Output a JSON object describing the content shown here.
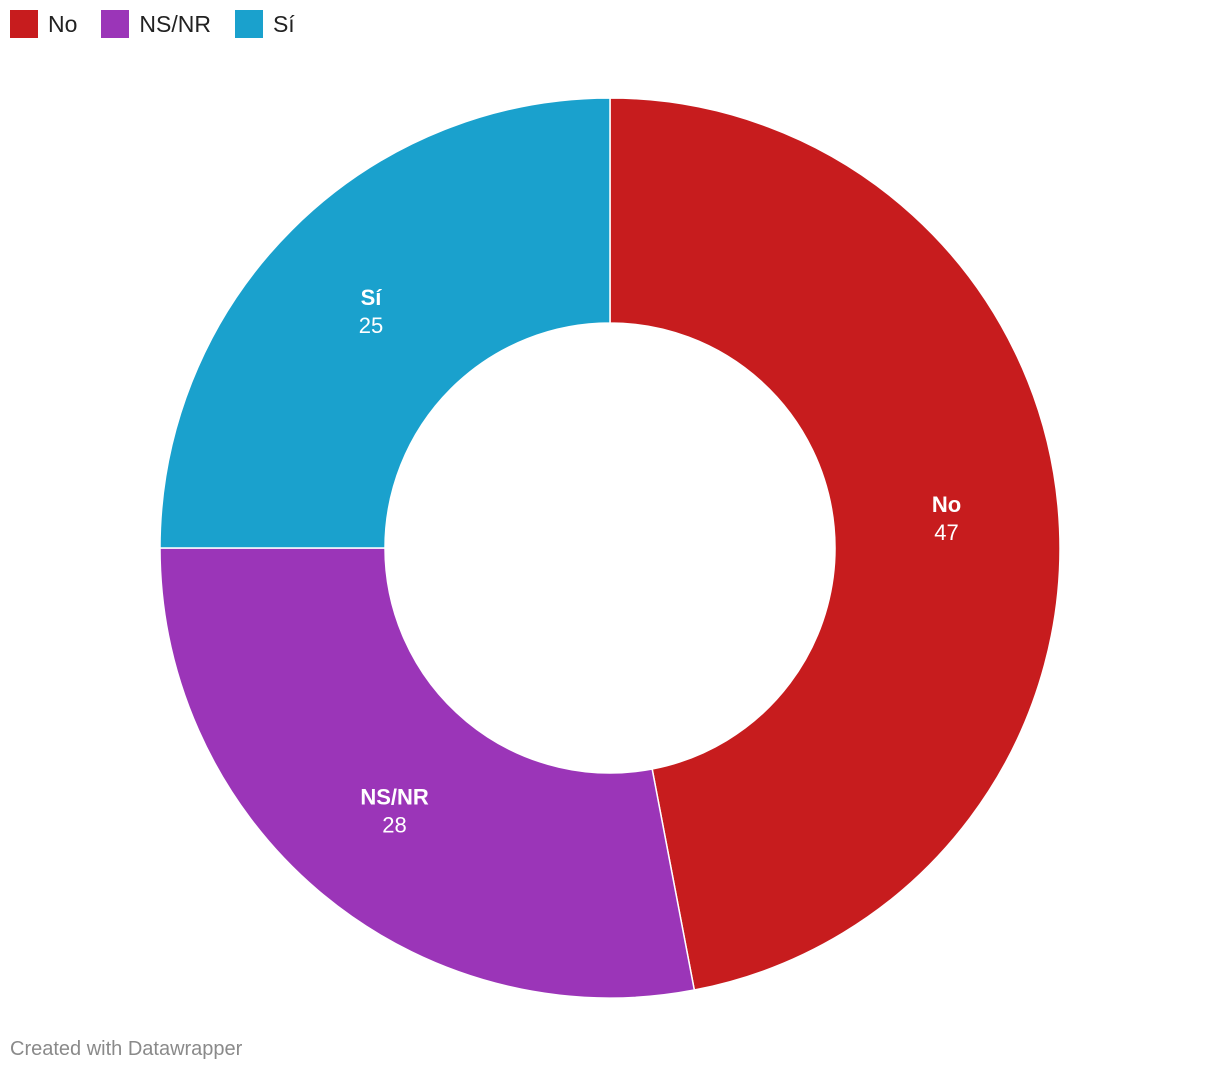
{
  "chart_data": {
    "type": "pie",
    "donut": true,
    "categories": [
      "No",
      "NS/NR",
      "Sí"
    ],
    "values": [
      47,
      28,
      25
    ],
    "colors": [
      "#c71c1e",
      "#9b35b8",
      "#1aa1cd"
    ],
    "legend_position": "top-left",
    "title": "",
    "xlabel": "",
    "ylabel": ""
  },
  "footer": {
    "credit": "Created with Datawrapper"
  }
}
